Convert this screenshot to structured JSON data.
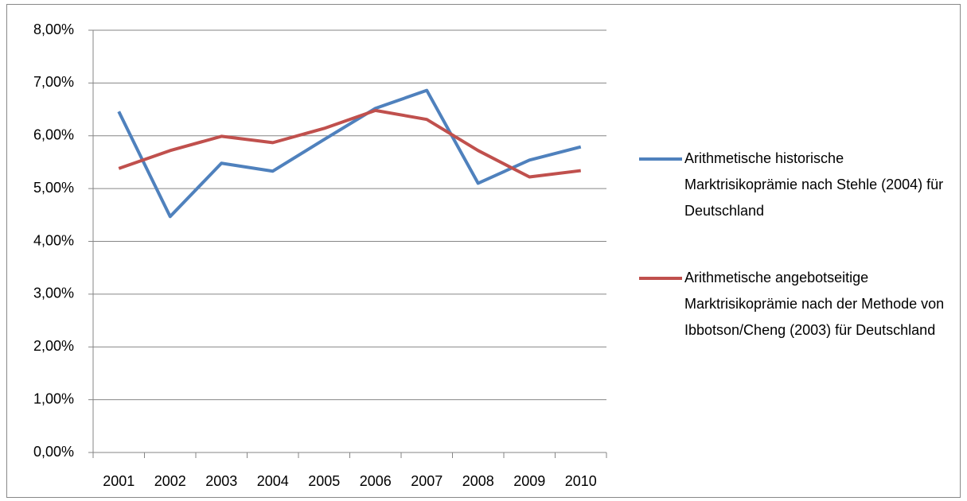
{
  "chart_data": {
    "type": "line",
    "categories": [
      "2001",
      "2002",
      "2003",
      "2004",
      "2005",
      "2006",
      "2007",
      "2008",
      "2009",
      "2010"
    ],
    "series": [
      {
        "name": "Arithmetische historische Marktrisikoprämie nach Stehle (2004) für Deutschland",
        "color": "#4f81bd",
        "values": [
          6.46,
          4.47,
          5.48,
          5.33,
          5.93,
          6.52,
          6.86,
          5.1,
          5.54,
          5.79
        ]
      },
      {
        "name": "Arithmetische angebotseitige Marktrisikoprämie nach der Methode von Ibbotson/Cheng (2003) für Deutschland",
        "color": "#c0504d",
        "values": [
          5.38,
          5.72,
          5.99,
          5.87,
          6.14,
          6.48,
          6.31,
          5.72,
          5.22,
          5.34
        ]
      }
    ],
    "ylim": [
      0,
      8
    ],
    "yticks": [
      {
        "value": 0,
        "label": "0,00%"
      },
      {
        "value": 1,
        "label": "1,00%"
      },
      {
        "value": 2,
        "label": "2,00%"
      },
      {
        "value": 3,
        "label": "3,00%"
      },
      {
        "value": 4,
        "label": "4,00%"
      },
      {
        "value": 5,
        "label": "5,00%"
      },
      {
        "value": 6,
        "label": "6,00%"
      },
      {
        "value": 7,
        "label": "7,00%"
      },
      {
        "value": 8,
        "label": "8,00%"
      }
    ],
    "grid": true,
    "legend": "right"
  }
}
